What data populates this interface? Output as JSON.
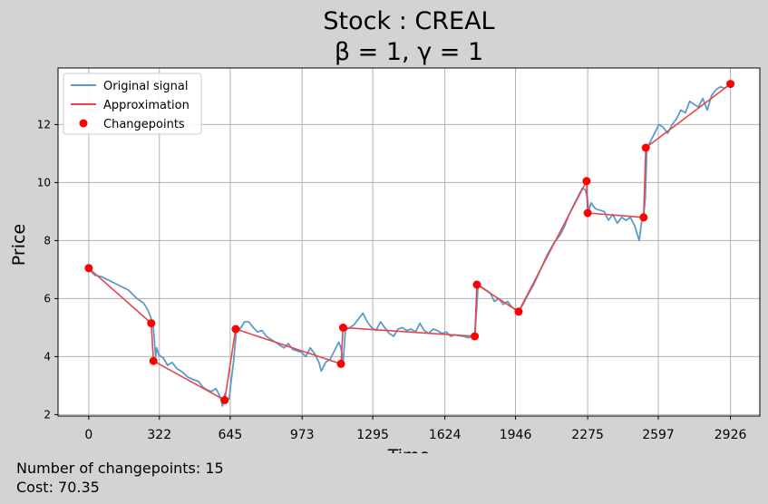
{
  "chart_data": {
    "type": "line",
    "title_line1": "Stock : CREAL",
    "title_line2": "β = 1, γ = 1",
    "xlabel": "Time",
    "ylabel": "Price",
    "x_ticks": [
      0,
      322,
      645,
      973,
      1295,
      1624,
      1946,
      2275,
      2597,
      2926
    ],
    "y_ticks": [
      2,
      4,
      6,
      8,
      10,
      12
    ],
    "xlim": [
      -140,
      3060
    ],
    "ylim": [
      1.95,
      13.95
    ],
    "grid": true,
    "legend_position": "top-left",
    "legend": [
      "Original signal",
      "Approximation",
      "Changepoints"
    ],
    "series": [
      {
        "name": "Original signal",
        "color": "#5b9bc8",
        "points": [
          [
            0,
            7.0
          ],
          [
            30,
            6.8
          ],
          [
            60,
            6.75
          ],
          [
            100,
            6.6
          ],
          [
            140,
            6.45
          ],
          [
            180,
            6.3
          ],
          [
            220,
            6.0
          ],
          [
            250,
            5.85
          ],
          [
            270,
            5.6
          ],
          [
            285,
            5.3
          ],
          [
            295,
            5.0
          ],
          [
            300,
            4.5
          ],
          [
            305,
            4.0
          ],
          [
            310,
            4.3
          ],
          [
            320,
            4.05
          ],
          [
            340,
            3.95
          ],
          [
            360,
            3.7
          ],
          [
            380,
            3.8
          ],
          [
            400,
            3.6
          ],
          [
            430,
            3.45
          ],
          [
            450,
            3.3
          ],
          [
            480,
            3.2
          ],
          [
            500,
            3.15
          ],
          [
            520,
            2.95
          ],
          [
            540,
            2.85
          ],
          [
            560,
            2.8
          ],
          [
            580,
            2.9
          ],
          [
            600,
            2.6
          ],
          [
            610,
            2.3
          ],
          [
            620,
            2.7
          ],
          [
            630,
            2.5
          ],
          [
            640,
            2.55
          ],
          [
            650,
            3.2
          ],
          [
            660,
            3.8
          ],
          [
            670,
            4.6
          ],
          [
            675,
            5.0
          ],
          [
            690,
            4.95
          ],
          [
            710,
            5.2
          ],
          [
            730,
            5.2
          ],
          [
            750,
            5.0
          ],
          [
            770,
            4.85
          ],
          [
            790,
            4.9
          ],
          [
            810,
            4.7
          ],
          [
            830,
            4.6
          ],
          [
            850,
            4.5
          ],
          [
            870,
            4.4
          ],
          [
            890,
            4.3
          ],
          [
            910,
            4.45
          ],
          [
            930,
            4.25
          ],
          [
            950,
            4.2
          ],
          [
            970,
            4.15
          ],
          [
            990,
            4.0
          ],
          [
            1010,
            4.3
          ],
          [
            1030,
            4.1
          ],
          [
            1050,
            3.8
          ],
          [
            1060,
            3.5
          ],
          [
            1080,
            3.8
          ],
          [
            1100,
            3.9
          ],
          [
            1120,
            4.2
          ],
          [
            1140,
            4.5
          ],
          [
            1150,
            4.3
          ],
          [
            1160,
            3.8
          ],
          [
            1170,
            4.9
          ],
          [
            1190,
            5.0
          ],
          [
            1210,
            5.1
          ],
          [
            1230,
            5.3
          ],
          [
            1250,
            5.5
          ],
          [
            1270,
            5.2
          ],
          [
            1290,
            5.0
          ],
          [
            1310,
            4.9
          ],
          [
            1330,
            5.2
          ],
          [
            1350,
            5.0
          ],
          [
            1370,
            4.8
          ],
          [
            1390,
            4.7
          ],
          [
            1410,
            4.95
          ],
          [
            1430,
            5.0
          ],
          [
            1450,
            4.9
          ],
          [
            1470,
            4.95
          ],
          [
            1490,
            4.85
          ],
          [
            1510,
            5.15
          ],
          [
            1530,
            4.9
          ],
          [
            1550,
            4.8
          ],
          [
            1570,
            4.95
          ],
          [
            1590,
            4.9
          ],
          [
            1610,
            4.8
          ],
          [
            1630,
            4.85
          ],
          [
            1650,
            4.7
          ],
          [
            1670,
            4.75
          ],
          [
            1690,
            4.72
          ],
          [
            1710,
            4.7
          ],
          [
            1730,
            4.65
          ],
          [
            1750,
            4.7
          ],
          [
            1760,
            4.65
          ],
          [
            1770,
            5.8
          ],
          [
            1775,
            6.5
          ],
          [
            1790,
            6.4
          ],
          [
            1810,
            6.3
          ],
          [
            1830,
            6.2
          ],
          [
            1850,
            5.9
          ],
          [
            1870,
            6.0
          ],
          [
            1890,
            5.8
          ],
          [
            1910,
            5.9
          ],
          [
            1930,
            5.7
          ],
          [
            1950,
            5.6
          ],
          [
            1960,
            5.55
          ],
          [
            1980,
            5.8
          ],
          [
            2000,
            6.1
          ],
          [
            2030,
            6.5
          ],
          [
            2060,
            7.0
          ],
          [
            2090,
            7.5
          ],
          [
            2120,
            7.9
          ],
          [
            2150,
            8.2
          ],
          [
            2170,
            8.5
          ],
          [
            2190,
            8.9
          ],
          [
            2210,
            9.2
          ],
          [
            2230,
            9.5
          ],
          [
            2250,
            9.8
          ],
          [
            2265,
            9.75
          ],
          [
            2275,
            9.4
          ],
          [
            2280,
            9.0
          ],
          [
            2290,
            9.3
          ],
          [
            2310,
            9.1
          ],
          [
            2330,
            9.05
          ],
          [
            2350,
            9.0
          ],
          [
            2370,
            8.7
          ],
          [
            2390,
            8.9
          ],
          [
            2410,
            8.6
          ],
          [
            2430,
            8.8
          ],
          [
            2450,
            8.7
          ],
          [
            2470,
            8.8
          ],
          [
            2490,
            8.5
          ],
          [
            2510,
            8.0
          ],
          [
            2520,
            8.6
          ],
          [
            2530,
            8.8
          ],
          [
            2538,
            9.5
          ],
          [
            2545,
            11.2
          ],
          [
            2560,
            11.4
          ],
          [
            2580,
            11.7
          ],
          [
            2600,
            12.0
          ],
          [
            2620,
            11.9
          ],
          [
            2640,
            11.7
          ],
          [
            2660,
            12.0
          ],
          [
            2680,
            12.2
          ],
          [
            2700,
            12.5
          ],
          [
            2720,
            12.4
          ],
          [
            2740,
            12.8
          ],
          [
            2760,
            12.7
          ],
          [
            2780,
            12.6
          ],
          [
            2800,
            12.9
          ],
          [
            2820,
            12.5
          ],
          [
            2840,
            13.0
          ],
          [
            2860,
            13.2
          ],
          [
            2880,
            13.3
          ],
          [
            2900,
            13.25
          ],
          [
            2926,
            13.4
          ]
        ]
      },
      {
        "name": "Approximation",
        "color": "#e8454a",
        "points": [
          [
            0,
            7.05
          ],
          [
            285,
            5.15
          ],
          [
            295,
            3.85
          ],
          [
            620,
            2.5
          ],
          [
            670,
            4.95
          ],
          [
            1150,
            3.75
          ],
          [
            1160,
            5.0
          ],
          [
            1760,
            4.7
          ],
          [
            1770,
            6.48
          ],
          [
            1960,
            5.55
          ],
          [
            2270,
            10.05
          ],
          [
            2275,
            8.95
          ],
          [
            2530,
            8.8
          ],
          [
            2540,
            11.2
          ],
          [
            2926,
            13.4
          ]
        ]
      }
    ],
    "changepoints": {
      "name": "Changepoints",
      "color": "#ff0000",
      "points": [
        [
          0,
          7.05
        ],
        [
          285,
          5.15
        ],
        [
          295,
          3.85
        ],
        [
          620,
          2.5
        ],
        [
          670,
          4.95
        ],
        [
          1150,
          3.75
        ],
        [
          1160,
          5.0
        ],
        [
          1760,
          4.7
        ],
        [
          1770,
          6.48
        ],
        [
          1960,
          5.55
        ],
        [
          2270,
          10.05
        ],
        [
          2275,
          8.95
        ],
        [
          2530,
          8.8
        ],
        [
          2540,
          11.2
        ],
        [
          2926,
          13.4
        ]
      ]
    }
  },
  "footer": {
    "changepoints_text": "Number of changepoints: 15",
    "cost_text": "Cost: 70.35"
  }
}
